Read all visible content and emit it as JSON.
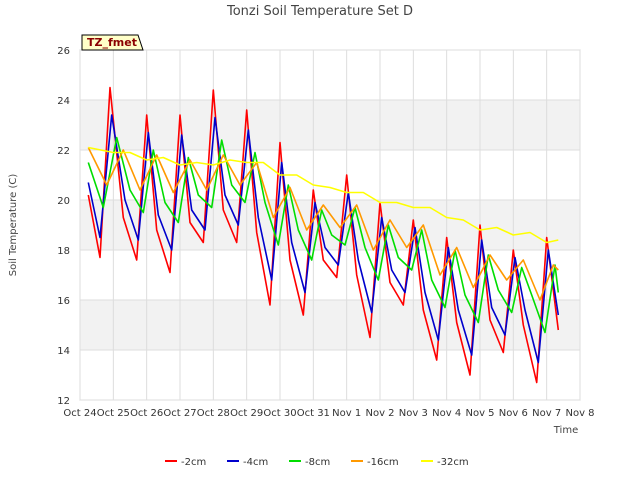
{
  "chart_data": {
    "type": "line",
    "title": "Tonzi Soil Temperature Set D",
    "xlabel": "Time",
    "ylabel": "Soil Temperature (C)",
    "badge": "TZ_fmet",
    "x_ticks": [
      "Oct 24",
      "Oct 25",
      "Oct 26",
      "Oct 27",
      "Oct 28",
      "Oct 29",
      "Oct 30",
      "Oct 31",
      "Nov 1",
      "Nov 2",
      "Nov 3",
      "Nov 4",
      "Nov 5",
      "Nov 6",
      "Nov 7",
      "Nov 8"
    ],
    "y_ticks": [
      12,
      14,
      16,
      18,
      20,
      22,
      24,
      26
    ],
    "ylim": [
      12,
      26
    ],
    "xlim": [
      0,
      15
    ],
    "x_units": "days since Oct 24",
    "grid": true,
    "legend_position": "bottom",
    "series": [
      {
        "name": "-2cm",
        "color": "#ff0000",
        "x": [
          0.25,
          0.6,
          0.9,
          1.3,
          1.7,
          2.0,
          2.3,
          2.7,
          3.0,
          3.3,
          3.7,
          4.0,
          4.3,
          4.7,
          5.0,
          5.3,
          5.7,
          6.0,
          6.3,
          6.7,
          7.0,
          7.3,
          7.7,
          8.0,
          8.3,
          8.7,
          9.0,
          9.3,
          9.7,
          10.0,
          10.3,
          10.7,
          11.0,
          11.3,
          11.7,
          12.0,
          12.3,
          12.7,
          13.0,
          13.3,
          13.7,
          14.0,
          14.35
        ],
        "values": [
          20.2,
          17.7,
          24.5,
          19.3,
          17.6,
          23.4,
          18.8,
          17.1,
          23.4,
          19.1,
          18.3,
          24.4,
          19.6,
          18.3,
          23.6,
          18.7,
          15.8,
          22.3,
          17.6,
          15.4,
          20.4,
          17.6,
          16.9,
          21.0,
          17.0,
          14.5,
          19.9,
          16.7,
          15.8,
          19.2,
          15.6,
          13.6,
          18.5,
          15.1,
          13.0,
          19.0,
          15.2,
          13.9,
          18.0,
          15.0,
          12.7,
          18.5,
          14.8
        ]
      },
      {
        "name": "-4cm",
        "color": "#0000cc",
        "x": [
          0.25,
          0.6,
          0.95,
          1.35,
          1.75,
          2.05,
          2.35,
          2.75,
          3.05,
          3.35,
          3.75,
          4.05,
          4.35,
          4.75,
          5.05,
          5.35,
          5.75,
          6.05,
          6.35,
          6.75,
          7.05,
          7.35,
          7.75,
          8.05,
          8.35,
          8.75,
          9.05,
          9.35,
          9.75,
          10.05,
          10.35,
          10.75,
          11.05,
          11.35,
          11.75,
          12.05,
          12.35,
          12.75,
          13.05,
          13.35,
          13.75,
          14.05,
          14.35
        ],
        "values": [
          20.7,
          18.5,
          23.4,
          20.0,
          18.4,
          22.7,
          19.4,
          18.0,
          22.6,
          19.6,
          18.8,
          23.3,
          20.2,
          19.0,
          22.8,
          19.3,
          16.8,
          21.5,
          18.3,
          16.3,
          19.9,
          18.1,
          17.4,
          20.3,
          17.6,
          15.5,
          19.3,
          17.2,
          16.3,
          18.9,
          16.3,
          14.4,
          18.1,
          15.6,
          13.8,
          18.4,
          15.7,
          14.6,
          17.7,
          15.6,
          13.5,
          18.0,
          15.4
        ]
      },
      {
        "name": "-8cm",
        "color": "#00dd00",
        "x": [
          0.25,
          0.7,
          1.1,
          1.5,
          1.9,
          2.2,
          2.55,
          2.95,
          3.25,
          3.55,
          3.95,
          4.25,
          4.55,
          4.95,
          5.25,
          5.55,
          5.95,
          6.25,
          6.55,
          6.95,
          7.25,
          7.55,
          7.95,
          8.25,
          8.55,
          8.95,
          9.25,
          9.55,
          9.95,
          10.25,
          10.55,
          10.95,
          11.25,
          11.55,
          11.95,
          12.25,
          12.55,
          12.95,
          13.25,
          13.55,
          13.95,
          14.25,
          14.35
        ],
        "values": [
          21.5,
          19.7,
          22.5,
          20.4,
          19.5,
          22.0,
          19.9,
          19.1,
          21.7,
          20.2,
          19.7,
          22.4,
          20.6,
          19.9,
          21.9,
          19.9,
          18.2,
          20.6,
          18.8,
          17.6,
          19.6,
          18.6,
          18.2,
          19.7,
          18.1,
          16.8,
          19.0,
          17.7,
          17.2,
          18.8,
          16.8,
          15.7,
          18.0,
          16.2,
          15.1,
          17.8,
          16.4,
          15.5,
          17.3,
          16.2,
          14.7,
          17.4,
          16.3
        ]
      },
      {
        "name": "-16cm",
        "color": "#ff9900",
        "x": [
          0.25,
          0.8,
          1.3,
          1.8,
          2.3,
          2.8,
          3.3,
          3.8,
          4.3,
          4.8,
          5.3,
          5.8,
          6.3,
          6.8,
          7.3,
          7.8,
          8.3,
          8.8,
          9.3,
          9.8,
          10.3,
          10.8,
          11.3,
          11.8,
          12.3,
          12.8,
          13.3,
          13.8,
          14.2,
          14.35
        ],
        "values": [
          22.1,
          20.6,
          22.0,
          20.4,
          21.8,
          20.3,
          21.6,
          20.4,
          21.8,
          20.6,
          21.5,
          19.3,
          20.5,
          18.8,
          19.8,
          18.9,
          19.8,
          18.0,
          19.2,
          18.1,
          19.0,
          17.0,
          18.1,
          16.5,
          17.8,
          16.8,
          17.6,
          16.0,
          17.4,
          17.2
        ]
      },
      {
        "name": "-32cm",
        "color": "#ffff00",
        "x": [
          0.25,
          1.0,
          1.5,
          2.0,
          2.5,
          3.0,
          3.5,
          4.0,
          4.5,
          5.0,
          5.5,
          6.0,
          6.5,
          7.0,
          7.5,
          8.0,
          8.5,
          9.0,
          9.5,
          10.0,
          10.5,
          11.0,
          11.5,
          12.0,
          12.5,
          13.0,
          13.5,
          14.0,
          14.35
        ],
        "values": [
          22.1,
          21.9,
          21.9,
          21.6,
          21.7,
          21.4,
          21.5,
          21.4,
          21.6,
          21.5,
          21.5,
          21.0,
          21.0,
          20.6,
          20.5,
          20.3,
          20.3,
          19.9,
          19.9,
          19.7,
          19.7,
          19.3,
          19.2,
          18.8,
          18.9,
          18.6,
          18.7,
          18.3,
          18.4
        ]
      }
    ]
  }
}
